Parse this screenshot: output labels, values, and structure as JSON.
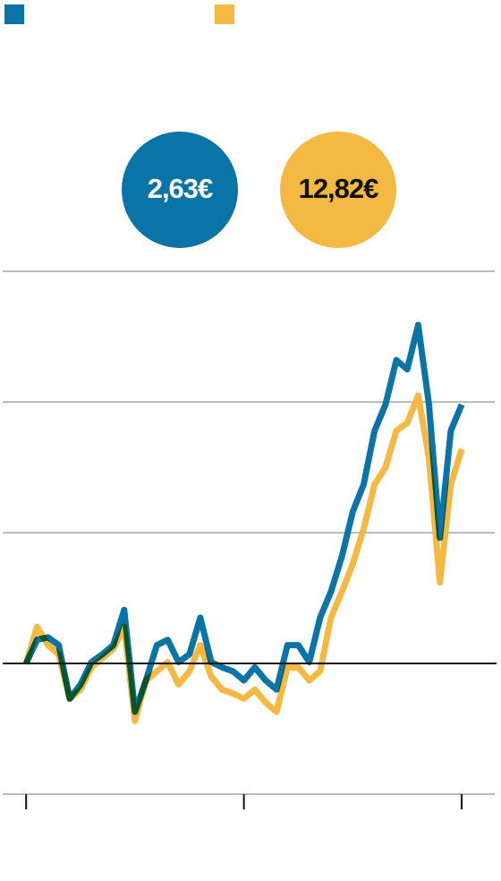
{
  "chart_data": {
    "type": "line",
    "x": [
      0,
      0.05,
      0.1,
      0.15,
      0.2,
      0.25,
      0.3,
      0.35,
      0.4,
      0.45,
      0.5,
      0.55,
      0.6,
      0.65,
      0.7,
      0.75,
      0.8,
      0.85,
      0.9,
      0.95,
      1.0,
      1.05,
      1.1,
      1.15,
      1.2,
      1.25,
      1.3,
      1.35,
      1.4,
      1.45,
      1.5,
      1.55,
      1.6,
      1.65,
      1.7,
      1.75,
      1.8,
      1.85,
      1.9,
      1.95,
      2.0
    ],
    "series": [
      {
        "color": "#0a74a6",
        "label": "2,63€",
        "label_color": "#ffffff",
        "values": [
          0,
          0.18,
          0.2,
          0.14,
          -0.27,
          -0.16,
          0.01,
          0.07,
          0.14,
          0.41,
          -0.37,
          -0.13,
          0.14,
          0.18,
          0.01,
          0.07,
          0.35,
          0.01,
          -0.03,
          -0.06,
          -0.13,
          -0.03,
          -0.13,
          -0.2,
          0.14,
          0.14,
          0.01,
          0.35,
          0.55,
          0.82,
          1.16,
          1.37,
          1.78,
          1.98,
          2.32,
          2.25,
          2.59,
          1.98,
          0.96,
          1.78,
          1.98
        ]
      },
      {
        "color": "#f4b942",
        "label": "12,82€",
        "label_color": "#111111",
        "values": [
          0,
          0.28,
          0.14,
          0.07,
          -0.27,
          -0.2,
          -0.03,
          0.04,
          0.11,
          0.28,
          -0.44,
          -0.13,
          -0.06,
          0.01,
          -0.16,
          -0.06,
          0.14,
          -0.1,
          -0.2,
          -0.23,
          -0.27,
          -0.2,
          -0.3,
          -0.37,
          -0.03,
          -0.03,
          -0.13,
          -0.06,
          0.35,
          0.55,
          0.76,
          1.03,
          1.37,
          1.5,
          1.78,
          1.84,
          2.05,
          1.57,
          0.62,
          1.37,
          1.64
        ]
      }
    ],
    "xlim": [
      -0.12,
      2.16
    ],
    "xticks": [
      0,
      1,
      2
    ],
    "ylim": [
      -1,
      3.1
    ],
    "yticks": [
      -1,
      0,
      1,
      2,
      3
    ],
    "zero_line": 0,
    "grid": true
  }
}
